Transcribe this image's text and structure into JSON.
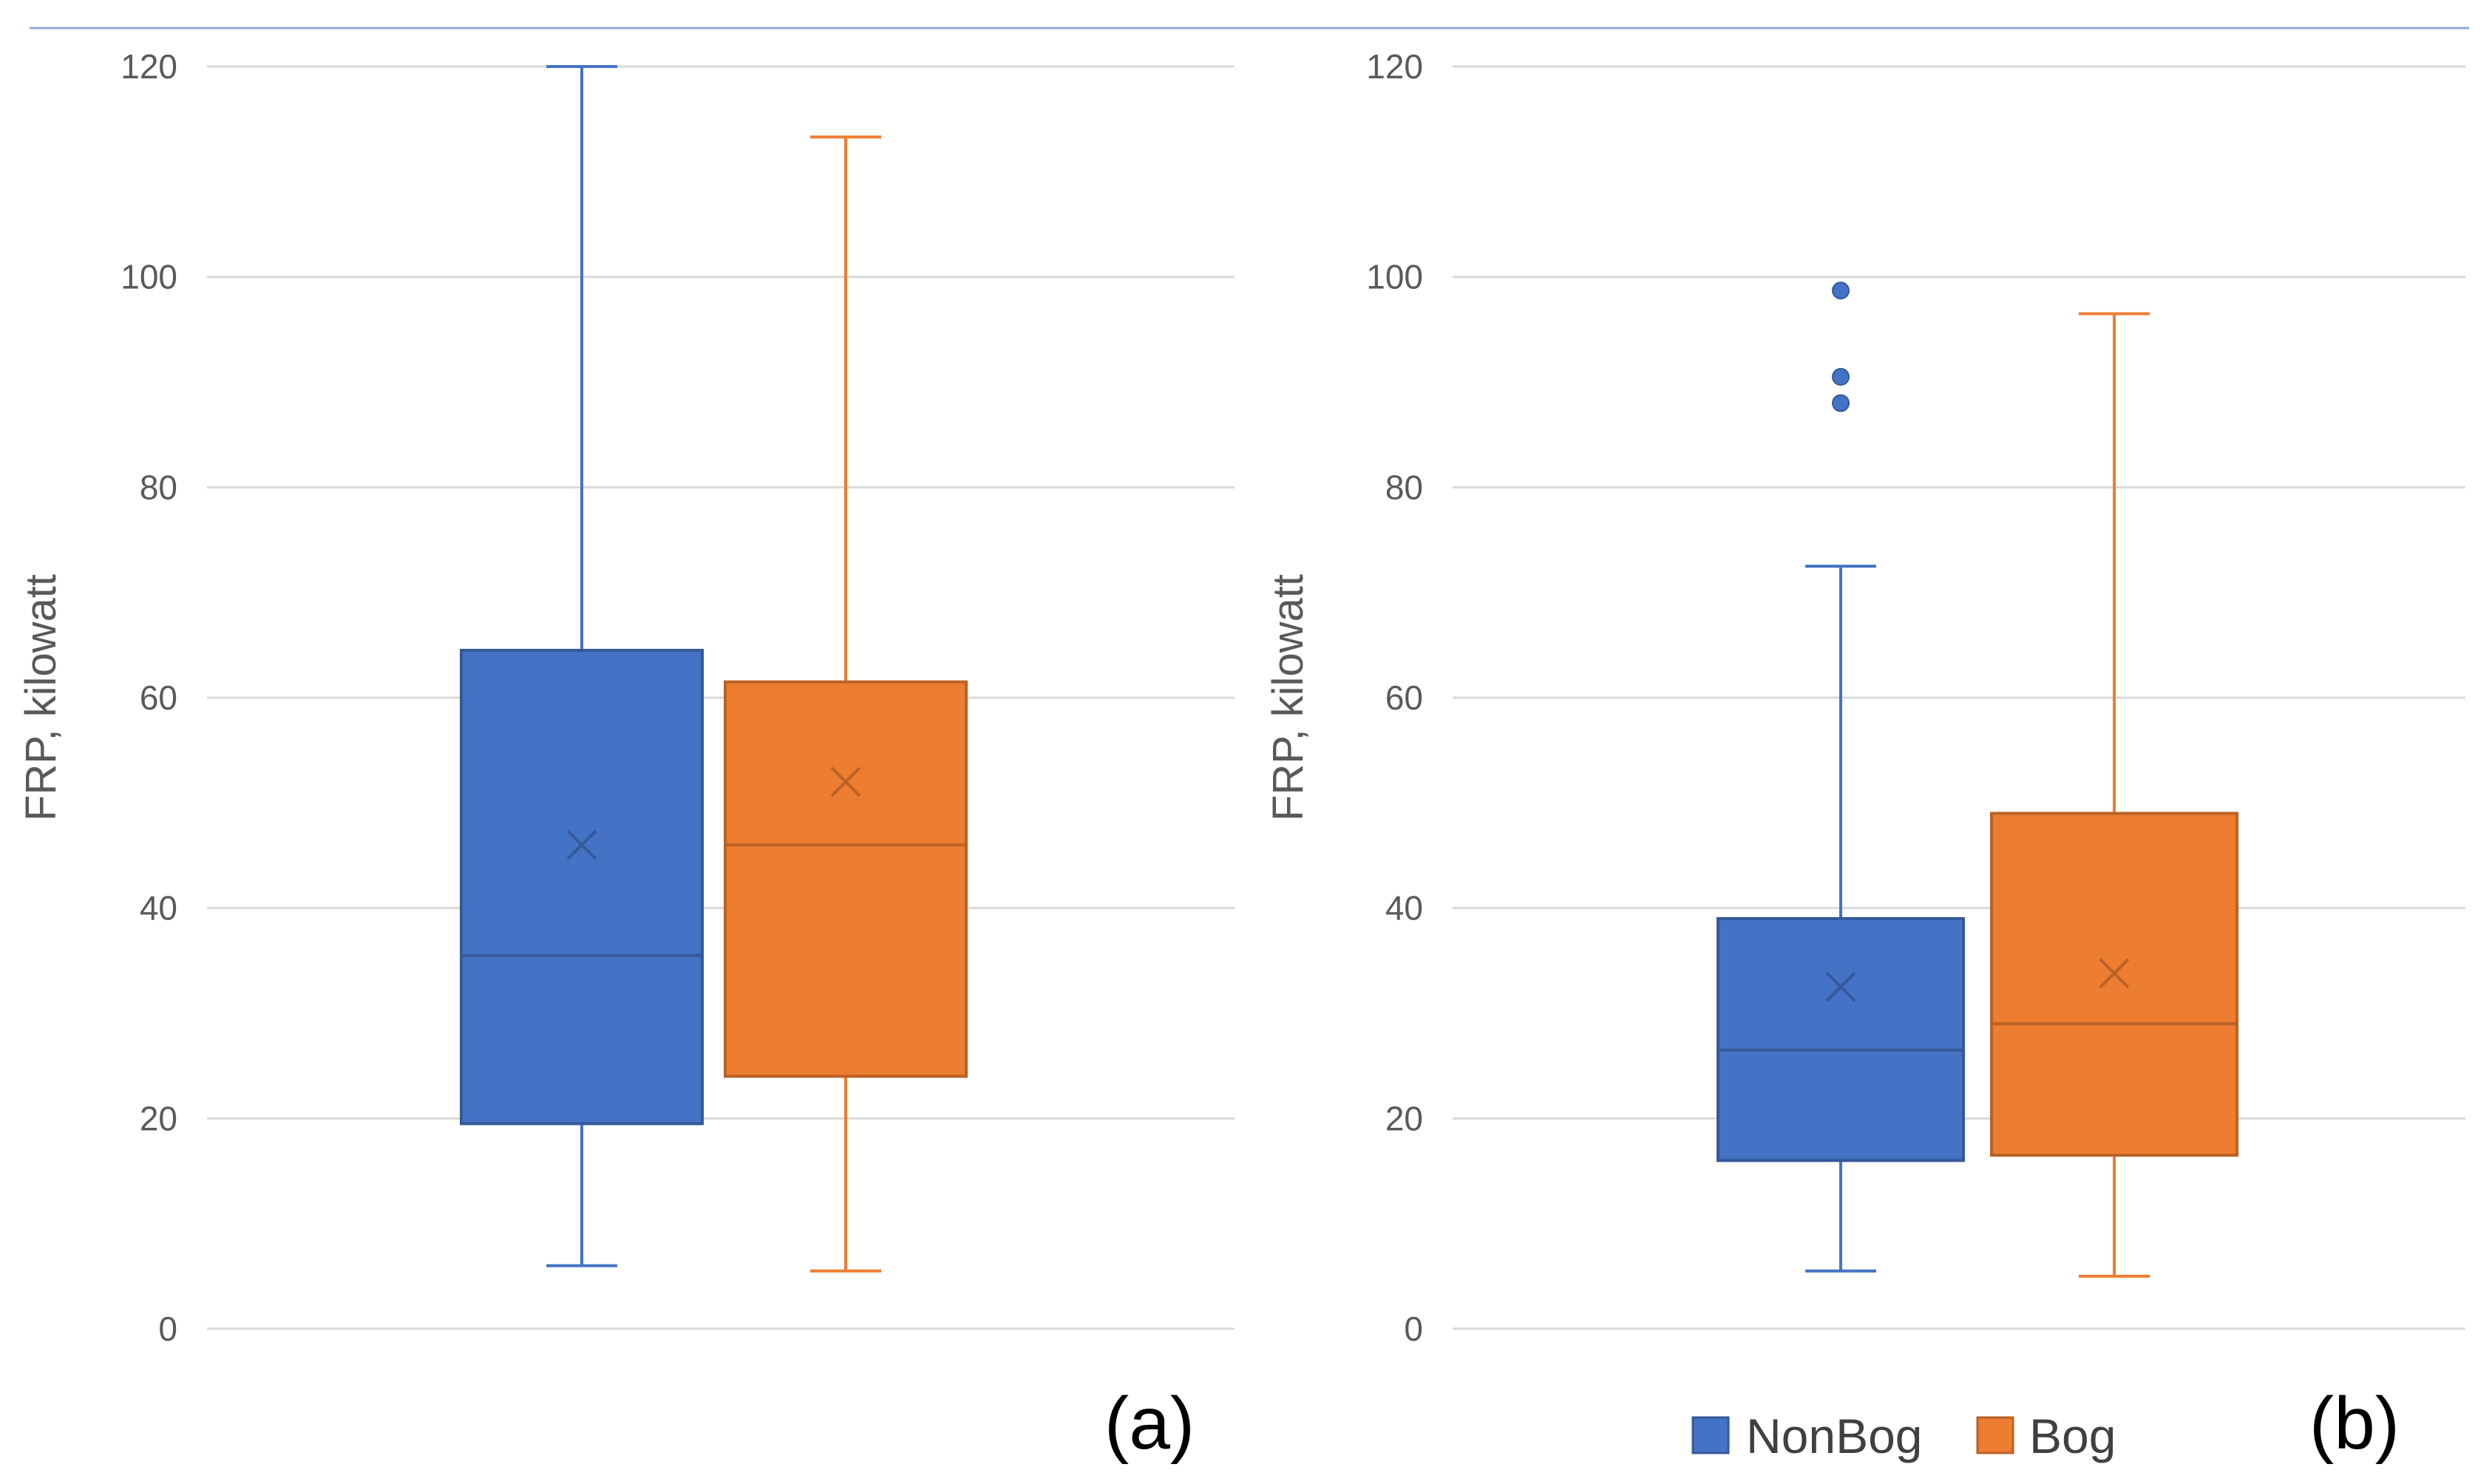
{
  "chart_data": [
    {
      "type": "box",
      "panel_label": "(a)",
      "ylabel": "FRP, kilowatt",
      "ylim": [
        0,
        120
      ],
      "yticks": [
        0,
        20,
        40,
        60,
        80,
        100,
        120
      ],
      "grid": true,
      "legend": null,
      "series": [
        {
          "name": "NonBog",
          "color": "#4472C4",
          "whisker_low": 6,
          "q1": 19.5,
          "median": 35.5,
          "q3": 64.5,
          "whisker_high": 120,
          "mean": 46,
          "outliers": []
        },
        {
          "name": "Bog",
          "color": "#ED7D31",
          "whisker_low": 5.5,
          "q1": 24,
          "median": 46,
          "q3": 61.5,
          "whisker_high": 113.3,
          "mean": 52,
          "outliers": []
        }
      ]
    },
    {
      "type": "box",
      "panel_label": "(b)",
      "ylabel": "FRP, kilowatt",
      "ylim": [
        0,
        120
      ],
      "yticks": [
        0,
        20,
        40,
        60,
        80,
        100,
        120
      ],
      "grid": true,
      "legend": "bottom",
      "series": [
        {
          "name": "NonBog",
          "color": "#4472C4",
          "whisker_low": 5.5,
          "q1": 16,
          "median": 26.5,
          "q3": 39,
          "whisker_high": 72.5,
          "mean": 32.5,
          "outliers": [
            88,
            90.5,
            98.7
          ]
        },
        {
          "name": "Bog",
          "color": "#ED7D31",
          "whisker_low": 5,
          "q1": 16.5,
          "median": 29,
          "q3": 49,
          "whisker_high": 96.5,
          "mean": 33.8,
          "outliers": []
        }
      ]
    }
  ],
  "style": {
    "grid_color": "#d9d9d9",
    "axis_color": "#d9d9d9",
    "top_rule_color": "#8fa9d8"
  }
}
